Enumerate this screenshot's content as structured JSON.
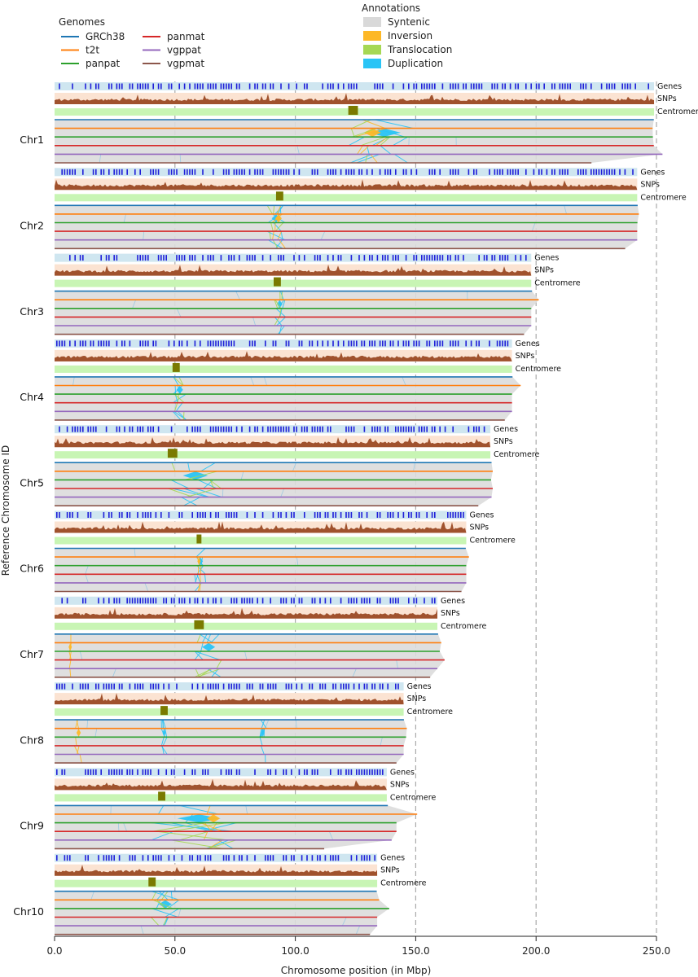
{
  "chart_data": {
    "type": "line",
    "xlabel": "Chromosome position (in Mbp)",
    "ylabel": "Reference Chromosome ID",
    "xlim": [
      0,
      265
    ],
    "x_ticks": [
      {
        "value": 0,
        "label": "0.0"
      },
      {
        "value": 50,
        "label": "50.0"
      },
      {
        "value": 100,
        "label": "100.0"
      },
      {
        "value": 150,
        "label": "150.0"
      },
      {
        "value": 200,
        "label": "200.0"
      },
      {
        "value": 250,
        "label": "250.0"
      }
    ],
    "gridlines_at": [
      50,
      100,
      150,
      200,
      250
    ],
    "legend_genomes": {
      "title": "Genomes",
      "entries": [
        {
          "name": "GRCh38",
          "color": "#1f77b4"
        },
        {
          "name": "t2t",
          "color": "#ff7f0e"
        },
        {
          "name": "panpat",
          "color": "#2ca02c"
        },
        {
          "name": "panmat",
          "color": "#d62728"
        },
        {
          "name": "vgppat",
          "color": "#9467bd"
        },
        {
          "name": "vgpmat",
          "color": "#8c564b"
        }
      ]
    },
    "legend_annotations": {
      "title": "Annotations",
      "entries": [
        {
          "name": "Syntenic",
          "color": "#d9d9d9"
        },
        {
          "name": "Inversion",
          "color": "#fdb827"
        },
        {
          "name": "Translocation",
          "color": "#a6d854"
        },
        {
          "name": "Duplication",
          "color": "#29c4f6"
        }
      ]
    },
    "track_labels": {
      "genes": "Genes",
      "snps": "SNPs",
      "centromere": "Centromere"
    },
    "chromosomes": [
      {
        "name": "Chr1",
        "ref_length": 249,
        "centromere": [
          122,
          126
        ],
        "lengths": [
          248.9,
          248.4,
          248.5,
          248.9,
          252.5,
          223.0
        ],
        "events": [
          {
            "type": "Duplication",
            "x": [
              122,
              152
            ]
          },
          {
            "type": "Inversion",
            "x": [
              124,
              140
            ]
          },
          {
            "type": "Translocation",
            "x": [
              122,
              140
            ]
          }
        ]
      },
      {
        "name": "Chr2",
        "ref_length": 242,
        "centromere": [
          92,
          95
        ],
        "lengths": [
          242.2,
          242.7,
          242.1,
          242.0,
          242.0,
          237.0
        ],
        "events": [
          {
            "type": "Duplication",
            "x": [
              88,
              96
            ]
          },
          {
            "type": "Inversion",
            "x": [
              90,
              96
            ]
          },
          {
            "type": "Translocation",
            "x": [
              88,
              95
            ]
          }
        ]
      },
      {
        "name": "Chr3",
        "ref_length": 198,
        "centromere": [
          91,
          94
        ],
        "lengths": [
          198.3,
          201.1,
          198.0,
          198.0,
          198.0,
          195.0
        ],
        "events": [
          {
            "type": "Duplication",
            "x": [
              91,
              96
            ]
          },
          {
            "type": "Translocation",
            "x": [
              91,
              95
            ]
          }
        ]
      },
      {
        "name": "Chr4",
        "ref_length": 190,
        "centromere": [
          49,
          52
        ],
        "lengths": [
          190.2,
          193.6,
          190.0,
          190.0,
          190.0,
          187.0
        ],
        "events": [
          {
            "type": "Duplication",
            "x": [
              49,
              55
            ]
          },
          {
            "type": "Translocation",
            "x": [
              49,
              54
            ]
          }
        ]
      },
      {
        "name": "Chr5",
        "ref_length": 181,
        "centromere": [
          47,
          51
        ],
        "lengths": [
          181.5,
          182.0,
          181.3,
          182.0,
          181.5,
          176.0
        ],
        "events": [
          {
            "type": "Duplication",
            "x": [
              47,
              70
            ]
          },
          {
            "type": "Translocation",
            "x": [
              47,
              70
            ]
          }
        ]
      },
      {
        "name": "Chr6",
        "ref_length": 171,
        "centromere": [
          59,
          61
        ],
        "lengths": [
          170.8,
          172.1,
          171.0,
          171.0,
          171.0,
          169.0
        ],
        "events": [
          {
            "type": "Duplication",
            "x": [
              58,
              63
            ]
          },
          {
            "type": "Inversion",
            "x": [
              59,
              61
            ]
          }
        ]
      },
      {
        "name": "Chr7",
        "ref_length": 159,
        "centromere": [
          58,
          62
        ],
        "lengths": [
          159.3,
          160.6,
          160.0,
          162.0,
          159.0,
          156.0
        ],
        "events": [
          {
            "type": "Duplication",
            "x": [
              58,
              70
            ]
          },
          {
            "type": "Inversion",
            "x": [
              6,
              7
            ]
          },
          {
            "type": "Translocation",
            "x": [
              58,
              70
            ]
          }
        ]
      },
      {
        "name": "Chr8",
        "ref_length": 145,
        "centromere": [
          44,
          47
        ],
        "lengths": [
          145.1,
          146.3,
          146.0,
          145.0,
          145.0,
          142.0
        ],
        "events": [
          {
            "type": "Duplication",
            "x": [
              44,
              47
            ]
          },
          {
            "type": "Duplication",
            "x": [
              85,
              88
            ]
          },
          {
            "type": "Inversion",
            "x": [
              8,
              12
            ]
          }
        ]
      },
      {
        "name": "Chr9",
        "ref_length": 138,
        "centromere": [
          43,
          46
        ],
        "lengths": [
          138.4,
          150.6,
          142.0,
          142.0,
          140.0,
          112.0
        ],
        "events": [
          {
            "type": "Duplication",
            "x": [
              40,
              80
            ]
          },
          {
            "type": "Inversion",
            "x": [
              60,
              72
            ]
          },
          {
            "type": "Translocation",
            "x": [
              40,
              80
            ]
          }
        ]
      },
      {
        "name": "Chr10",
        "ref_length": 134,
        "centromere": [
          39,
          42
        ],
        "lengths": [
          133.8,
          134.8,
          139.0,
          134.0,
          134.0,
          131.0
        ],
        "events": [
          {
            "type": "Duplication",
            "x": [
              40,
              52
            ]
          },
          {
            "type": "Translocation",
            "x": [
              40,
              52
            ]
          }
        ]
      }
    ]
  }
}
